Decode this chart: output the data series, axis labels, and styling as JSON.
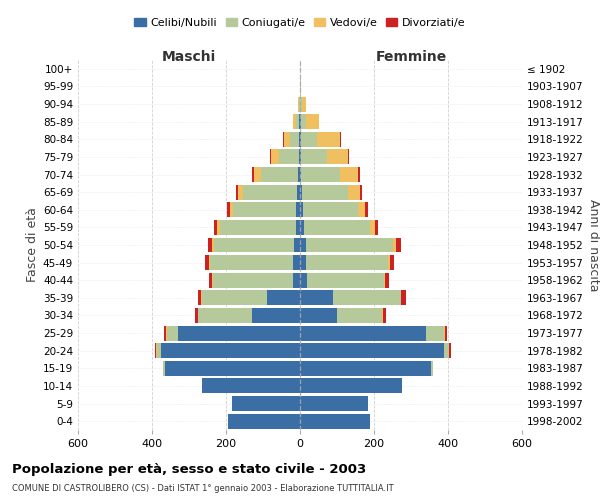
{
  "age_groups": [
    "100+",
    "95-99",
    "90-94",
    "85-89",
    "80-84",
    "75-79",
    "70-74",
    "65-69",
    "60-64",
    "55-59",
    "50-54",
    "45-49",
    "40-44",
    "35-39",
    "30-34",
    "25-29",
    "20-24",
    "15-19",
    "10-14",
    "5-9",
    "0-4"
  ],
  "birth_years": [
    "≤ 1902",
    "1903-1907",
    "1908-1912",
    "1913-1917",
    "1918-1922",
    "1923-1927",
    "1928-1932",
    "1933-1937",
    "1938-1942",
    "1943-1947",
    "1948-1952",
    "1953-1957",
    "1958-1962",
    "1963-1967",
    "1968-1972",
    "1973-1977",
    "1978-1982",
    "1983-1987",
    "1988-1992",
    "1993-1997",
    "1998-2002"
  ],
  "male_celibi": [
    0,
    0,
    0,
    2,
    2,
    3,
    5,
    8,
    10,
    12,
    15,
    18,
    20,
    90,
    130,
    330,
    375,
    365,
    265,
    185,
    195
  ],
  "male_coniugati": [
    0,
    1,
    3,
    8,
    25,
    55,
    100,
    145,
    170,
    205,
    218,
    225,
    215,
    175,
    145,
    30,
    12,
    5,
    0,
    0,
    0
  ],
  "male_vedovi": [
    0,
    0,
    2,
    8,
    15,
    20,
    18,
    14,
    10,
    6,
    5,
    4,
    3,
    2,
    2,
    2,
    2,
    0,
    0,
    0,
    0
  ],
  "male_divorziati": [
    0,
    0,
    0,
    0,
    3,
    3,
    6,
    6,
    8,
    9,
    12,
    10,
    9,
    8,
    6,
    5,
    3,
    0,
    0,
    0,
    0
  ],
  "female_nubili": [
    0,
    0,
    0,
    2,
    2,
    2,
    3,
    5,
    8,
    10,
    15,
    15,
    18,
    90,
    100,
    340,
    390,
    355,
    275,
    185,
    190
  ],
  "female_coniugate": [
    0,
    2,
    5,
    15,
    45,
    70,
    105,
    125,
    148,
    178,
    235,
    222,
    208,
    182,
    122,
    50,
    12,
    5,
    0,
    0,
    0
  ],
  "female_vedove": [
    0,
    2,
    10,
    35,
    60,
    58,
    48,
    32,
    20,
    14,
    9,
    6,
    4,
    2,
    2,
    2,
    2,
    0,
    0,
    0,
    0
  ],
  "female_divorziate": [
    0,
    0,
    0,
    0,
    3,
    3,
    6,
    6,
    8,
    9,
    15,
    11,
    11,
    13,
    8,
    6,
    3,
    0,
    0,
    0,
    0
  ],
  "color_celibi": "#3a6ea5",
  "color_coniugati": "#b5c99a",
  "color_vedovi": "#f0c060",
  "color_divorziati": "#cc2222",
  "xlim": 600,
  "xticks": [
    -600,
    -400,
    -200,
    0,
    200,
    400,
    600
  ],
  "xticklabels": [
    "600",
    "400",
    "200",
    "0",
    "200",
    "400",
    "600"
  ],
  "title": "Popolazione per età, sesso e stato civile - 2003",
  "subtitle": "COMUNE DI CASTROLIBERO (CS) - Dati ISTAT 1° gennaio 2003 - Elaborazione TUTTITALIA.IT",
  "label_maschi": "Maschi",
  "label_femmine": "Femmine",
  "ylabel_left": "Fasce di età",
  "ylabel_right": "Anni di nascita",
  "legend_labels": [
    "Celibi/Nubili",
    "Coniugati/e",
    "Vedovi/e",
    "Divorziati/e"
  ]
}
